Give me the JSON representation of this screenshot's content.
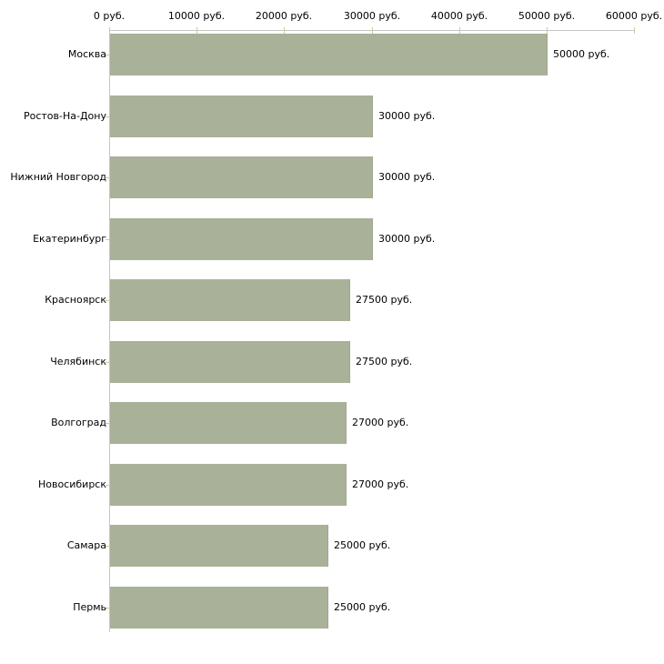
{
  "chart_data": {
    "type": "bar",
    "orientation": "horizontal",
    "title": "",
    "categories": [
      "Москва",
      "Ростов-На-Дону",
      "Нижний Новгород",
      "Екатеринбург",
      "Красноярск",
      "Челябинск",
      "Волгоград",
      "Новосибирск",
      "Самара",
      "Пермь"
    ],
    "values": [
      50000,
      30000,
      30000,
      30000,
      27500,
      27500,
      27000,
      27000,
      25000,
      25000
    ],
    "value_labels": [
      "50000 руб.",
      "30000 руб.",
      "30000 руб.",
      "30000 руб.",
      "27500 руб.",
      "27500 руб.",
      "27000 руб.",
      "27000 руб.",
      "25000 руб.",
      "25000 руб."
    ],
    "unit": "руб.",
    "x_axis": {
      "position": "top",
      "range": [
        0,
        60000
      ],
      "ticks": [
        0,
        10000,
        20000,
        30000,
        40000,
        50000,
        60000
      ],
      "tick_labels": [
        "0 руб.",
        "10000 руб.",
        "20000 руб.",
        "30000 руб.",
        "40000 руб.",
        "50000 руб.",
        "60000 руб."
      ]
    },
    "grid": false,
    "legend": false,
    "colors": {
      "bar": "#a9b199",
      "bar_edge": "#a0a890",
      "axis_line": "#c6c6c6",
      "tick_mark": "#cccc99",
      "text": "#000000",
      "background": "#ffffff"
    }
  }
}
